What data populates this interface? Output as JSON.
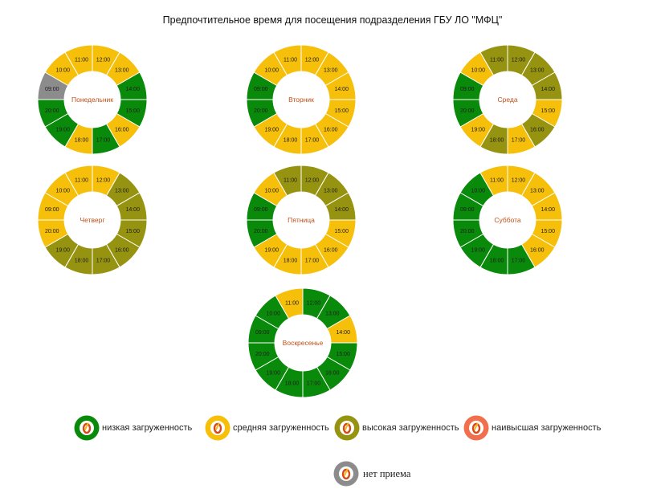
{
  "title": "Предпочтительное время для посещения подразделения ГБУ ЛО \"МФЦ\"",
  "colors": {
    "low": "#0a8a0a",
    "medium": "#f6bf0a",
    "high": "#969310",
    "highest": "#f0704e",
    "closed": "#8c8c8c",
    "day_label": "#c05018"
  },
  "chart_data": {
    "type": "donut",
    "title": "Предпочтительное время для посещения подразделения ГБУ ЛО \"МФЦ\"",
    "levels": [
      "low",
      "medium",
      "high",
      "highest",
      "closed"
    ],
    "days": [
      {
        "name": "Понедельник",
        "hours": [
          {
            "time": "12:00",
            "level": "medium"
          },
          {
            "time": "13:00",
            "level": "medium"
          },
          {
            "time": "14:00",
            "level": "low"
          },
          {
            "time": "15:00",
            "level": "low"
          },
          {
            "time": "16:00",
            "level": "medium"
          },
          {
            "time": "17:00",
            "level": "low"
          },
          {
            "time": "18:00",
            "level": "medium"
          },
          {
            "time": "19:00",
            "level": "low"
          },
          {
            "time": "20:00",
            "level": "low"
          },
          {
            "time": "09:00",
            "level": "closed"
          },
          {
            "time": "10:00",
            "level": "medium"
          },
          {
            "time": "11:00",
            "level": "medium"
          }
        ]
      },
      {
        "name": "Вторник",
        "hours": [
          {
            "time": "12:00",
            "level": "medium"
          },
          {
            "time": "13:00",
            "level": "medium"
          },
          {
            "time": "14:00",
            "level": "medium"
          },
          {
            "time": "15:00",
            "level": "medium"
          },
          {
            "time": "16:00",
            "level": "medium"
          },
          {
            "time": "17:00",
            "level": "medium"
          },
          {
            "time": "18:00",
            "level": "medium"
          },
          {
            "time": "19:00",
            "level": "medium"
          },
          {
            "time": "20:00",
            "level": "low"
          },
          {
            "time": "09:00",
            "level": "low"
          },
          {
            "time": "10:00",
            "level": "medium"
          },
          {
            "time": "11:00",
            "level": "medium"
          }
        ]
      },
      {
        "name": "Среда",
        "hours": [
          {
            "time": "12:00",
            "level": "high"
          },
          {
            "time": "13:00",
            "level": "high"
          },
          {
            "time": "14:00",
            "level": "high"
          },
          {
            "time": "15:00",
            "level": "medium"
          },
          {
            "time": "16:00",
            "level": "high"
          },
          {
            "time": "17:00",
            "level": "medium"
          },
          {
            "time": "18:00",
            "level": "high"
          },
          {
            "time": "19:00",
            "level": "medium"
          },
          {
            "time": "20:00",
            "level": "low"
          },
          {
            "time": "09:00",
            "level": "low"
          },
          {
            "time": "10:00",
            "level": "medium"
          },
          {
            "time": "11:00",
            "level": "high"
          }
        ]
      },
      {
        "name": "Четверг",
        "hours": [
          {
            "time": "12:00",
            "level": "medium"
          },
          {
            "time": "13:00",
            "level": "high"
          },
          {
            "time": "14:00",
            "level": "high"
          },
          {
            "time": "15:00",
            "level": "high"
          },
          {
            "time": "16:00",
            "level": "high"
          },
          {
            "time": "17:00",
            "level": "high"
          },
          {
            "time": "18:00",
            "level": "high"
          },
          {
            "time": "19:00",
            "level": "high"
          },
          {
            "time": "20:00",
            "level": "medium"
          },
          {
            "time": "09:00",
            "level": "medium"
          },
          {
            "time": "10:00",
            "level": "medium"
          },
          {
            "time": "11:00",
            "level": "medium"
          }
        ]
      },
      {
        "name": "Пятница",
        "hours": [
          {
            "time": "12:00",
            "level": "high"
          },
          {
            "time": "13:00",
            "level": "high"
          },
          {
            "time": "14:00",
            "level": "high"
          },
          {
            "time": "15:00",
            "level": "medium"
          },
          {
            "time": "16:00",
            "level": "medium"
          },
          {
            "time": "17:00",
            "level": "medium"
          },
          {
            "time": "18:00",
            "level": "medium"
          },
          {
            "time": "19:00",
            "level": "medium"
          },
          {
            "time": "20:00",
            "level": "low"
          },
          {
            "time": "09:00",
            "level": "low"
          },
          {
            "time": "10:00",
            "level": "medium"
          },
          {
            "time": "11:00",
            "level": "high"
          }
        ]
      },
      {
        "name": "Суббота",
        "hours": [
          {
            "time": "12:00",
            "level": "medium"
          },
          {
            "time": "13:00",
            "level": "medium"
          },
          {
            "time": "14:00",
            "level": "medium"
          },
          {
            "time": "15:00",
            "level": "medium"
          },
          {
            "time": "16:00",
            "level": "medium"
          },
          {
            "time": "17:00",
            "level": "low"
          },
          {
            "time": "18:00",
            "level": "low"
          },
          {
            "time": "19:00",
            "level": "low"
          },
          {
            "time": "20:00",
            "level": "low"
          },
          {
            "time": "09:00",
            "level": "low"
          },
          {
            "time": "10:00",
            "level": "low"
          },
          {
            "time": "11:00",
            "level": "medium"
          }
        ]
      },
      {
        "name": "Воскресенье",
        "hours": [
          {
            "time": "12:00",
            "level": "low"
          },
          {
            "time": "13:00",
            "level": "low"
          },
          {
            "time": "14:00",
            "level": "medium"
          },
          {
            "time": "15:00",
            "level": "low"
          },
          {
            "time": "16:00",
            "level": "low"
          },
          {
            "time": "17:00",
            "level": "low"
          },
          {
            "time": "18:00",
            "level": "low"
          },
          {
            "time": "19:00",
            "level": "low"
          },
          {
            "time": "20:00",
            "level": "low"
          },
          {
            "time": "09:00",
            "level": "low"
          },
          {
            "time": "10:00",
            "level": "low"
          },
          {
            "time": "11:00",
            "level": "medium"
          }
        ]
      }
    ]
  },
  "legend": [
    {
      "label": "низкая загруженность",
      "color": "#0a8a0a",
      "icon": "low-load-icon"
    },
    {
      "label": "средняя загруженность",
      "color": "#f6bf0a",
      "icon": "medium-load-icon"
    },
    {
      "label": "высокая загруженность",
      "color": "#969310",
      "icon": "high-load-icon"
    },
    {
      "label": "наивысшая загруженность",
      "color": "#f0704e",
      "icon": "highest-load-icon"
    },
    {
      "label": "нет приема",
      "color": "#8c8c8c",
      "icon": "no-reception-icon"
    }
  ]
}
